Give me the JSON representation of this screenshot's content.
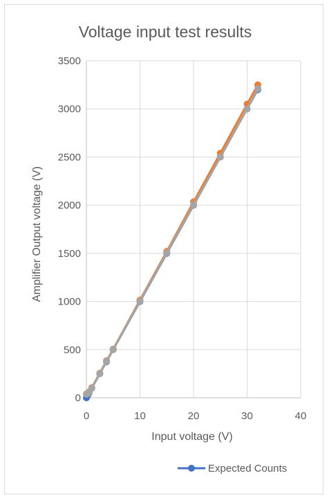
{
  "chart_data": {
    "type": "line",
    "title": "Voltage input test results",
    "xlabel": "Input voltage (V)",
    "ylabel": "Amplifier Output voltage (V)",
    "xlim": [
      0,
      40
    ],
    "ylim": [
      0,
      3500
    ],
    "x_ticks": [
      0,
      10,
      20,
      30,
      40
    ],
    "y_ticks": [
      0,
      500,
      1000,
      1500,
      2000,
      2500,
      3000,
      3500
    ],
    "grid": true,
    "legend_position": "bottom-right",
    "series": [
      {
        "name": "Expected Counts",
        "color": "#4472c4",
        "x": [
          0,
          0.25,
          0.5,
          1,
          2.5,
          3.75,
          5,
          10,
          15,
          20,
          25,
          30,
          32
        ],
        "y": [
          0,
          25,
          50,
          100,
          250,
          375,
          500,
          1000,
          1500,
          2000,
          2500,
          3000,
          3200
        ]
      },
      {
        "color": "#ed7d31",
        "x": [
          0,
          0.25,
          0.5,
          1,
          2.5,
          3.75,
          5,
          10,
          15,
          20,
          25,
          30,
          32
        ],
        "y": [
          40,
          45,
          60,
          105,
          255,
          385,
          505,
          1015,
          1520,
          2035,
          2540,
          3050,
          3250
        ]
      },
      {
        "color": "#a5a5a5",
        "x": [
          0,
          0.25,
          0.5,
          1,
          2.5,
          3.75,
          5,
          10,
          15,
          20,
          25,
          30,
          32
        ],
        "y": [
          38,
          42,
          55,
          100,
          250,
          380,
          500,
          1005,
          1505,
          2005,
          2500,
          3000,
          3210
        ]
      }
    ]
  }
}
